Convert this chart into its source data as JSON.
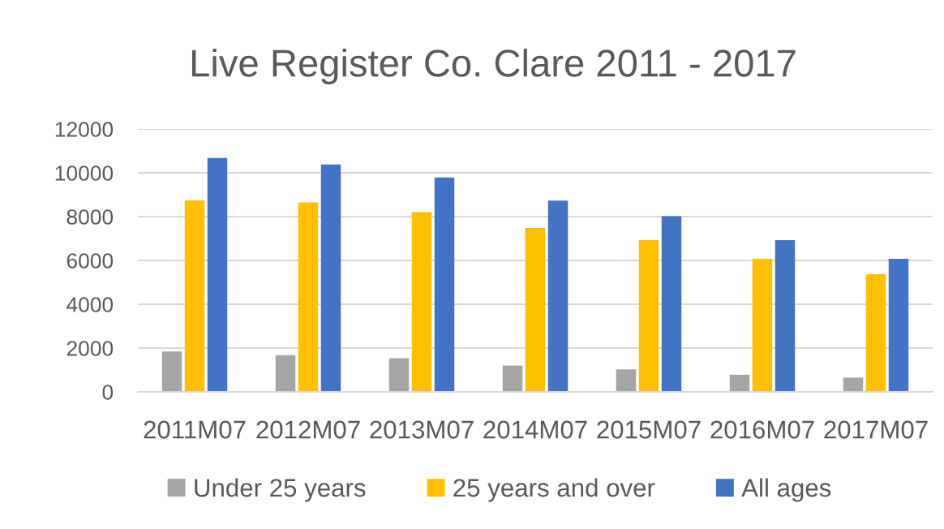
{
  "chart_data": {
    "type": "bar",
    "title": "Live Register Co. Clare 2011 - 2017",
    "categories": [
      "2011M07",
      "2012M07",
      "2013M07",
      "2014M07",
      "2015M07",
      "2016M07",
      "2017M07"
    ],
    "series": [
      {
        "name": "Under 25 years",
        "color": "#a5a5a5",
        "values": [
          1840,
          1680,
          1540,
          1200,
          1030,
          780,
          650
        ]
      },
      {
        "name": "25 years and over",
        "color": "#ffc000",
        "values": [
          8740,
          8650,
          8200,
          7480,
          6930,
          6070,
          5370
        ]
      },
      {
        "name": "All ages",
        "color": "#4472c4",
        "values": [
          10680,
          10380,
          9790,
          8730,
          8020,
          6930,
          6070
        ]
      }
    ],
    "ylim": [
      0,
      12000
    ],
    "yticks": [
      0,
      2000,
      4000,
      6000,
      8000,
      10000,
      12000
    ],
    "grid": "y",
    "legend": "bottom"
  }
}
